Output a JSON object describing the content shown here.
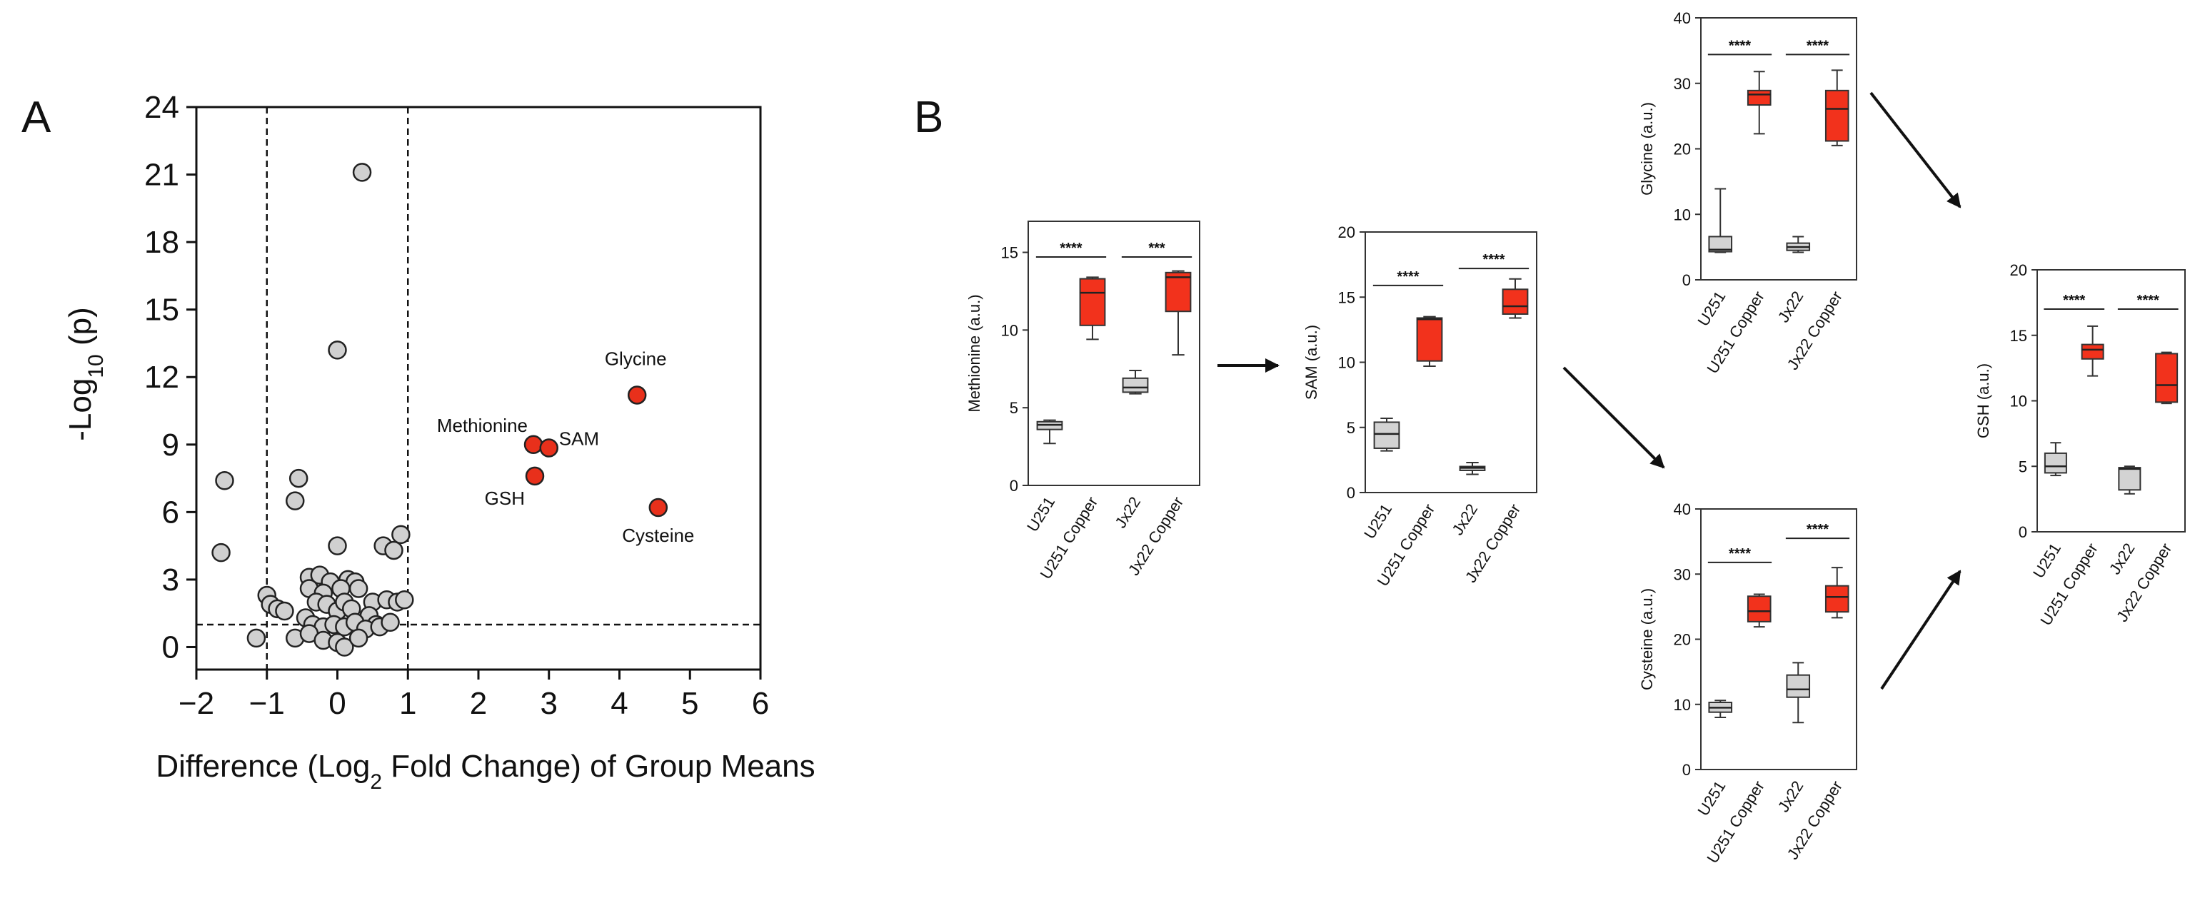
{
  "panels": {
    "A": "A",
    "B": "B"
  },
  "colors": {
    "control": "#d3d3d3",
    "copper": "#f2321c",
    "highlight": "#e8301b",
    "point": "#d0d0d0",
    "stroke": "#222222"
  },
  "chart_data": [
    {
      "id": "volcano",
      "type": "scatter",
      "title": "",
      "xlabel_parts": [
        "Difference (Log",
        "2",
        " Fold Change) of Group Means"
      ],
      "ylabel_parts": [
        "-Log",
        "10",
        " (p)"
      ],
      "xlim": [
        -2,
        6
      ],
      "ylim": [
        -1,
        24
      ],
      "xticks": [
        -2,
        -1,
        0,
        1,
        2,
        3,
        4,
        5,
        6
      ],
      "xtick_labels": [
        "−2",
        "−1",
        "0",
        "1",
        "2",
        "3",
        "4",
        "5",
        "6"
      ],
      "yticks": [
        0,
        3,
        6,
        9,
        12,
        15,
        18,
        21,
        24
      ],
      "thresholds": {
        "x": [
          -1,
          1
        ],
        "y": 1.0
      },
      "points": [
        [
          0.35,
          21.1
        ],
        [
          0.0,
          13.2
        ],
        [
          -1.6,
          7.4
        ],
        [
          -1.65,
          4.2
        ],
        [
          -0.55,
          7.5
        ],
        [
          -0.6,
          6.5
        ],
        [
          0.0,
          4.5
        ],
        [
          0.65,
          4.5
        ],
        [
          0.8,
          4.3
        ],
        [
          0.9,
          5.0
        ],
        [
          -0.4,
          3.1
        ],
        [
          -0.25,
          3.2
        ],
        [
          -0.1,
          2.9
        ],
        [
          0.15,
          3.0
        ],
        [
          0.25,
          2.9
        ],
        [
          -0.4,
          2.6
        ],
        [
          -0.2,
          2.4
        ],
        [
          0.05,
          2.6
        ],
        [
          0.3,
          2.6
        ],
        [
          0.5,
          2.0
        ],
        [
          0.7,
          2.1
        ],
        [
          0.85,
          2.0
        ],
        [
          0.95,
          2.1
        ],
        [
          -1.0,
          2.3
        ],
        [
          -0.95,
          1.9
        ],
        [
          -0.85,
          1.7
        ],
        [
          -0.75,
          1.6
        ],
        [
          -0.3,
          2.0
        ],
        [
          -0.15,
          1.9
        ],
        [
          0.0,
          1.6
        ],
        [
          0.1,
          2.0
        ],
        [
          0.2,
          1.7
        ],
        [
          0.45,
          1.4
        ],
        [
          0.55,
          1.0
        ],
        [
          -0.45,
          1.3
        ],
        [
          -0.35,
          1.0
        ],
        [
          -0.2,
          0.9
        ],
        [
          -0.05,
          1.0
        ],
        [
          0.1,
          0.9
        ],
        [
          0.25,
          1.1
        ],
        [
          0.4,
          0.8
        ],
        [
          0.6,
          0.9
        ],
        [
          0.75,
          1.1
        ],
        [
          -0.6,
          0.4
        ],
        [
          -0.4,
          0.6
        ],
        [
          -0.2,
          0.3
        ],
        [
          0.0,
          0.2
        ],
        [
          0.1,
          0.0
        ],
        [
          0.3,
          0.4
        ],
        [
          -1.15,
          0.4
        ]
      ],
      "highlighted": [
        {
          "label": "Methionine",
          "x": 2.78,
          "y": 9.0
        },
        {
          "label": "SAM",
          "x": 3.0,
          "y": 8.85
        },
        {
          "label": "GSH",
          "x": 2.8,
          "y": 7.6
        },
        {
          "label": "Glycine",
          "x": 4.25,
          "y": 11.2
        },
        {
          "label": "Cysteine",
          "x": 4.55,
          "y": 6.2
        }
      ]
    },
    {
      "id": "methionine",
      "type": "box",
      "ylabel": "Methionine (a.u.)",
      "ylim": [
        0,
        17
      ],
      "yticks": [
        0,
        5,
        10,
        15
      ],
      "categories": [
        "U251",
        "U251 Copper",
        "Jx22",
        "Jx22 Copper"
      ],
      "boxes": [
        {
          "min": 2.7,
          "q1": 3.6,
          "median": 3.9,
          "q3": 4.1,
          "max": 4.2
        },
        {
          "min": 9.4,
          "q1": 10.3,
          "median": 12.4,
          "q3": 13.3,
          "max": 13.4
        },
        {
          "min": 5.9,
          "q1": 6.0,
          "median": 6.3,
          "q3": 6.9,
          "max": 7.4
        },
        {
          "min": 8.4,
          "q1": 11.2,
          "median": 13.4,
          "q3": 13.7,
          "max": 13.8
        }
      ],
      "significance": [
        {
          "pair": [
            0,
            1
          ],
          "label": "****",
          "y": 14.7
        },
        {
          "pair": [
            2,
            3
          ],
          "label": "***",
          "y": 14.7
        }
      ]
    },
    {
      "id": "sam",
      "type": "box",
      "ylabel": "SAM (a.u.)",
      "ylim": [
        0,
        20
      ],
      "yticks": [
        0,
        5,
        10,
        15,
        20
      ],
      "categories": [
        "U251",
        "U251 Copper",
        "Jx22",
        "Jx22 Copper"
      ],
      "boxes": [
        {
          "min": 3.2,
          "q1": 3.4,
          "median": 4.5,
          "q3": 5.4,
          "max": 5.7
        },
        {
          "min": 9.7,
          "q1": 10.1,
          "median": 13.3,
          "q3": 13.4,
          "max": 13.5
        },
        {
          "min": 1.4,
          "q1": 1.7,
          "median": 1.9,
          "q3": 2.0,
          "max": 2.3
        },
        {
          "min": 13.4,
          "q1": 13.7,
          "median": 14.3,
          "q3": 15.6,
          "max": 16.4
        }
      ],
      "significance": [
        {
          "pair": [
            0,
            1
          ],
          "label": "****",
          "y": 15.9
        },
        {
          "pair": [
            2,
            3
          ],
          "label": "****",
          "y": 17.2
        }
      ]
    },
    {
      "id": "glycine",
      "type": "box",
      "ylabel": "Glycine (a.u.)",
      "ylim": [
        0,
        40
      ],
      "yticks": [
        0,
        10,
        20,
        30,
        40
      ],
      "categories": [
        "U251",
        "U251 Copper",
        "Jx22",
        "Jx22 Copper"
      ],
      "boxes": [
        {
          "min": 4.2,
          "q1": 4.3,
          "median": 4.6,
          "q3": 6.6,
          "max": 13.9
        },
        {
          "min": 22.3,
          "q1": 26.7,
          "median": 28.3,
          "q3": 28.9,
          "max": 31.8
        },
        {
          "min": 4.2,
          "q1": 4.5,
          "median": 5.0,
          "q3": 5.6,
          "max": 6.6
        },
        {
          "min": 20.5,
          "q1": 21.2,
          "median": 26.1,
          "q3": 28.9,
          "max": 32.0
        }
      ],
      "significance": [
        {
          "pair": [
            0,
            1
          ],
          "label": "****",
          "y": 34.4
        },
        {
          "pair": [
            2,
            3
          ],
          "label": "****",
          "y": 34.4
        }
      ]
    },
    {
      "id": "cysteine",
      "type": "box",
      "ylabel": "Cysteine (a.u.)",
      "ylim": [
        0,
        40
      ],
      "yticks": [
        0,
        10,
        20,
        30,
        40
      ],
      "categories": [
        "U251",
        "U251 Copper",
        "Jx22",
        "Jx22 Copper"
      ],
      "boxes": [
        {
          "min": 8.0,
          "q1": 8.8,
          "median": 9.5,
          "q3": 10.3,
          "max": 10.6
        },
        {
          "min": 21.9,
          "q1": 22.7,
          "median": 24.3,
          "q3": 26.6,
          "max": 26.9
        },
        {
          "min": 7.2,
          "q1": 11.1,
          "median": 12.3,
          "q3": 14.5,
          "max": 16.4
        },
        {
          "min": 23.3,
          "q1": 24.2,
          "median": 26.5,
          "q3": 28.2,
          "max": 31.0
        }
      ],
      "significance": [
        {
          "pair": [
            0,
            1
          ],
          "label": "****",
          "y": 31.8
        },
        {
          "pair": [
            2,
            3
          ],
          "label": "****",
          "y": 35.5
        }
      ]
    },
    {
      "id": "gsh",
      "type": "box",
      "ylabel": "GSH (a.u.)",
      "ylim": [
        0,
        20
      ],
      "yticks": [
        0,
        5,
        10,
        15,
        20
      ],
      "categories": [
        "U251",
        "U251 Copper",
        "Jx22",
        "Jx22 Copper"
      ],
      "boxes": [
        {
          "min": 4.3,
          "q1": 4.5,
          "median": 5.0,
          "q3": 6.0,
          "max": 6.8
        },
        {
          "min": 11.9,
          "q1": 13.2,
          "median": 13.9,
          "q3": 14.3,
          "max": 15.7
        },
        {
          "min": 2.9,
          "q1": 3.2,
          "median": 4.8,
          "q3": 4.9,
          "max": 5.0
        },
        {
          "min": 9.8,
          "q1": 9.9,
          "median": 11.2,
          "q3": 13.6,
          "max": 13.7
        }
      ],
      "significance": [
        {
          "pair": [
            0,
            1
          ],
          "label": "****",
          "y": 17.0
        },
        {
          "pair": [
            2,
            3
          ],
          "label": "****",
          "y": 17.0
        }
      ]
    }
  ]
}
